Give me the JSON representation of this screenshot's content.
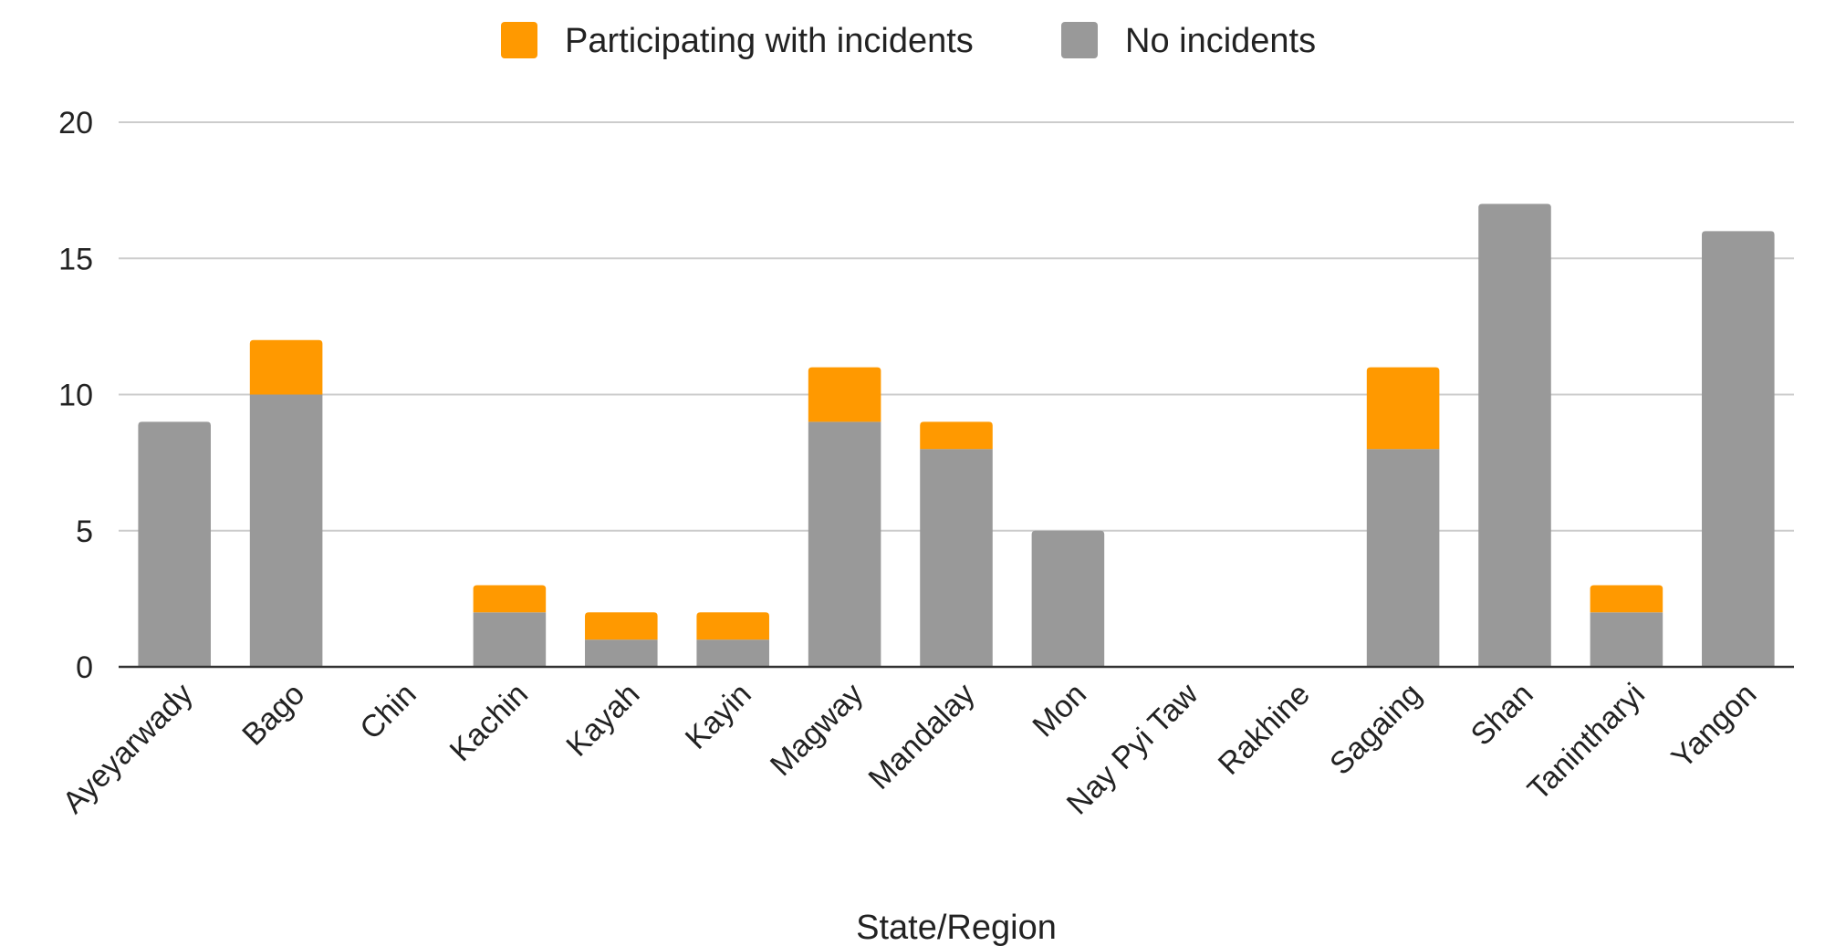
{
  "chart_data": {
    "type": "bar",
    "stacked": true,
    "title": "",
    "xlabel": "State/Region",
    "ylabel": "",
    "ylim": [
      0,
      20
    ],
    "yticks": [
      0,
      5,
      10,
      15,
      20
    ],
    "grid": true,
    "legend_position": "top",
    "categories": [
      "Ayeyarwady",
      "Bago",
      "Chin",
      "Kachin",
      "Kayah",
      "Kayin",
      "Magway",
      "Mandalay",
      "Mon",
      "Nay Pyi Taw",
      "Rakhine",
      "Sagaing",
      "Shan",
      "Tanintharyi",
      "Yangon"
    ],
    "series": [
      {
        "name": "No incidents",
        "color": "#999999",
        "values": [
          9,
          10,
          0,
          2,
          1,
          1,
          9,
          8,
          5,
          0,
          0,
          8,
          17,
          2,
          16
        ]
      },
      {
        "name": "Participating with incidents",
        "color": "#ff9900",
        "values": [
          0,
          2,
          0,
          1,
          1,
          1,
          2,
          1,
          0,
          0,
          0,
          3,
          0,
          1,
          0
        ]
      }
    ],
    "legend_order": [
      "Participating with incidents",
      "No incidents"
    ]
  }
}
